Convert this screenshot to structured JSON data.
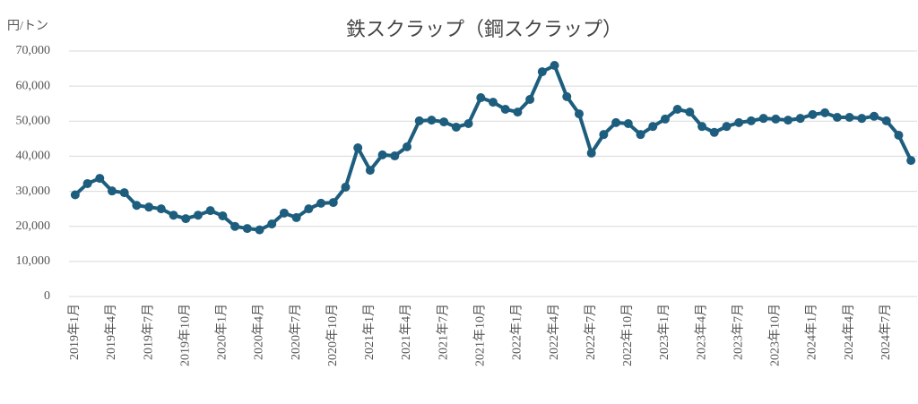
{
  "chart_data": {
    "type": "line",
    "title": "鉄スクラップ（鋼スクラップ）",
    "y_label": "円/トン",
    "categories": [
      "2019年1月",
      null,
      null,
      "2019年4月",
      null,
      null,
      "2019年7月",
      null,
      null,
      "2019年10月",
      null,
      null,
      "2020年1月",
      null,
      null,
      "2020年4月",
      null,
      null,
      "2020年7月",
      null,
      null,
      "2020年10月",
      null,
      null,
      "2021年1月",
      null,
      null,
      "2021年4月",
      null,
      null,
      "2021年7月",
      null,
      null,
      "2021年10月",
      null,
      null,
      "2022年1月",
      null,
      null,
      "2022年4月",
      null,
      null,
      "2022年7月",
      null,
      null,
      "2022年10月",
      null,
      null,
      "2023年1月",
      null,
      null,
      "2023年4月",
      null,
      null,
      "2023年7月",
      null,
      null,
      "2023年10月",
      null,
      null,
      "2024年1月",
      null,
      null,
      "2024年4月",
      null,
      null,
      "2024年7月",
      null,
      null
    ],
    "series": [
      {
        "color": "#1d5d7e",
        "values": [
          29000,
          32200,
          33700,
          30100,
          29600,
          26000,
          25500,
          25000,
          23200,
          22200,
          23200,
          24500,
          23000,
          20000,
          19400,
          19000,
          20700,
          23800,
          22500,
          25000,
          26600,
          26800,
          31200,
          42400,
          36000,
          40400,
          40100,
          42700,
          50100,
          50300,
          49800,
          48300,
          49300,
          56700,
          55400,
          53400,
          52600,
          56200,
          64100,
          65900,
          57000,
          52100,
          40900,
          46200,
          49600,
          49300,
          46200,
          48500,
          50600,
          53400,
          52600,
          48500,
          46800,
          48500,
          49600,
          50100,
          50800,
          50600,
          50300,
          50800,
          51900,
          52400,
          51100,
          51100,
          50800,
          51400,
          50100,
          46000,
          38800
        ]
      }
    ],
    "ylim": [
      0,
      70000
    ],
    "yticks": [
      0,
      {
        "value": 10000,
        "label": "10,000"
      },
      {
        "value": 20000,
        "label": "20,000"
      },
      {
        "value": 30000,
        "label": "30,000"
      },
      {
        "value": 40000,
        "label": "40,000"
      },
      {
        "value": 50000,
        "label": "50,000"
      },
      {
        "value": 60000,
        "label": "60,000"
      },
      {
        "value": 70000,
        "label": "70,000"
      }
    ],
    "grid": true
  }
}
